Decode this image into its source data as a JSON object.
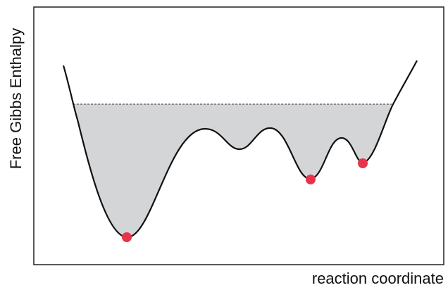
{
  "y_axis_label": "Free Gibbs Enthalpy",
  "x_axis_label": "reaction coordinate"
}
